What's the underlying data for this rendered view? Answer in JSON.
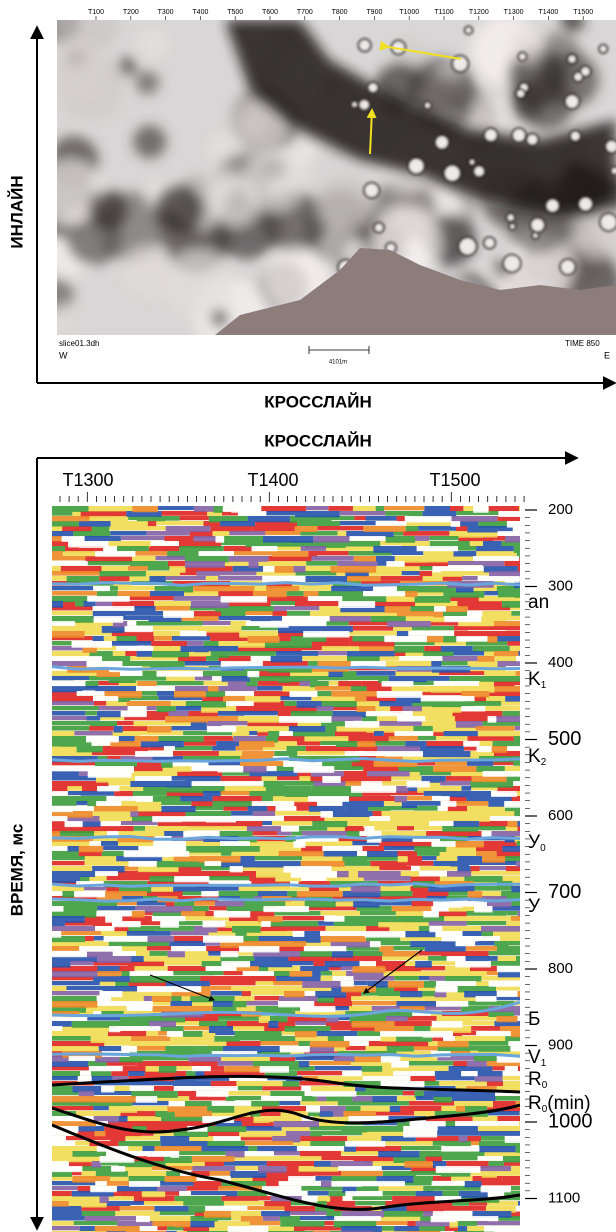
{
  "top_panel": {
    "crossline_ticks": [
      "T100",
      "T200",
      "T300",
      "T400",
      "T500",
      "T600",
      "T700",
      "T800",
      "T900",
      "T1000",
      "T1100",
      "T1200",
      "T1300",
      "T1400",
      "T1500"
    ],
    "file_label": "slice01.3dh",
    "west": "W",
    "scale_label": "4101m",
    "time_label": "TIME 850",
    "east": "E",
    "y_axis_label": "ИНЛАЙН",
    "x_axis_label": "КРОССЛАЙН"
  },
  "bottom_panel": {
    "x_axis_label": "КРОССЛАЙН",
    "crossline_ticks": [
      "T1300",
      "T1400",
      "T1500"
    ],
    "time_ticks": [
      200,
      300,
      400,
      500,
      600,
      700,
      800,
      900,
      1000,
      1100
    ],
    "y_axis_label": "ВРЕМЯ, мс",
    "horizons": [
      {
        "text": "an"
      },
      {
        "text": "K",
        "sub": "1"
      },
      {
        "text": "K",
        "sub": "2"
      },
      {
        "text": "У",
        "sub": "0"
      },
      {
        "text": "У"
      },
      {
        "text": "Б"
      },
      {
        "text": "V",
        "sub": "1"
      },
      {
        "text": "R",
        "sub": "0"
      },
      {
        "text": "R",
        "sub": "0",
        "suffix": "(min)"
      }
    ]
  }
}
